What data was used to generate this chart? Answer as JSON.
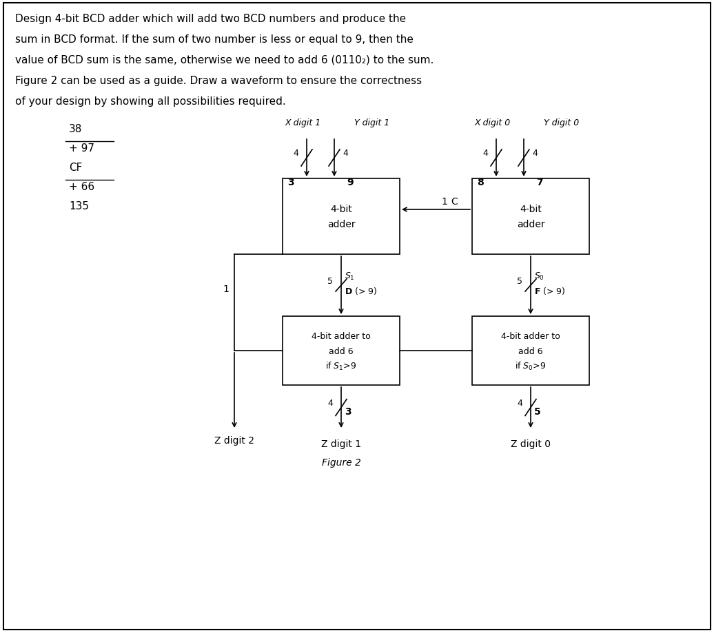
{
  "title_text": "Design 4-bit BCD adder which will add two BCD numbers and produce the\nsum in BCD format. If the sum of two number is less or equal to 9, then the\nvalue of BCD sum is the same, otherwise we need to add 6 (0110₂) to the sum.\nFigure 2 can be used as a guide. Draw a waveform to ensure the correctness\nof your design by showing all possibilities required.",
  "bg_color": "#ffffff",
  "border_color": "#000000",
  "text_color": "#000000",
  "box_color": "#ffffff",
  "box_edge_color": "#000000",
  "arithmetic": [
    "38",
    "+ 97",
    "CF",
    "+ 66",
    "135"
  ],
  "fig_width": 10.36,
  "fig_height": 9.2
}
